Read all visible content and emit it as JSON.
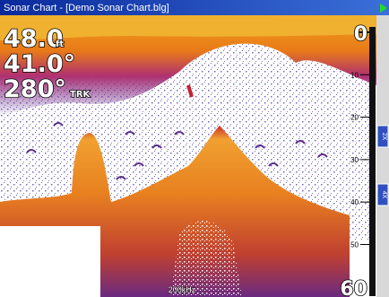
{
  "window": {
    "title": "Sonar Chart - [Demo Sonar Chart.blg]"
  },
  "readouts": {
    "depth": "48.0",
    "depth_unit": "ft",
    "temperature": "41.0°",
    "heading": "280°",
    "heading_label": "TRK"
  },
  "depth_scale": {
    "top": "0",
    "labels": [
      "10",
      "20",
      "30",
      "40",
      "50"
    ],
    "bottom": "60"
  },
  "frequency": "200kHz",
  "zoom_buttons": [
    "2X",
    "4X"
  ]
}
